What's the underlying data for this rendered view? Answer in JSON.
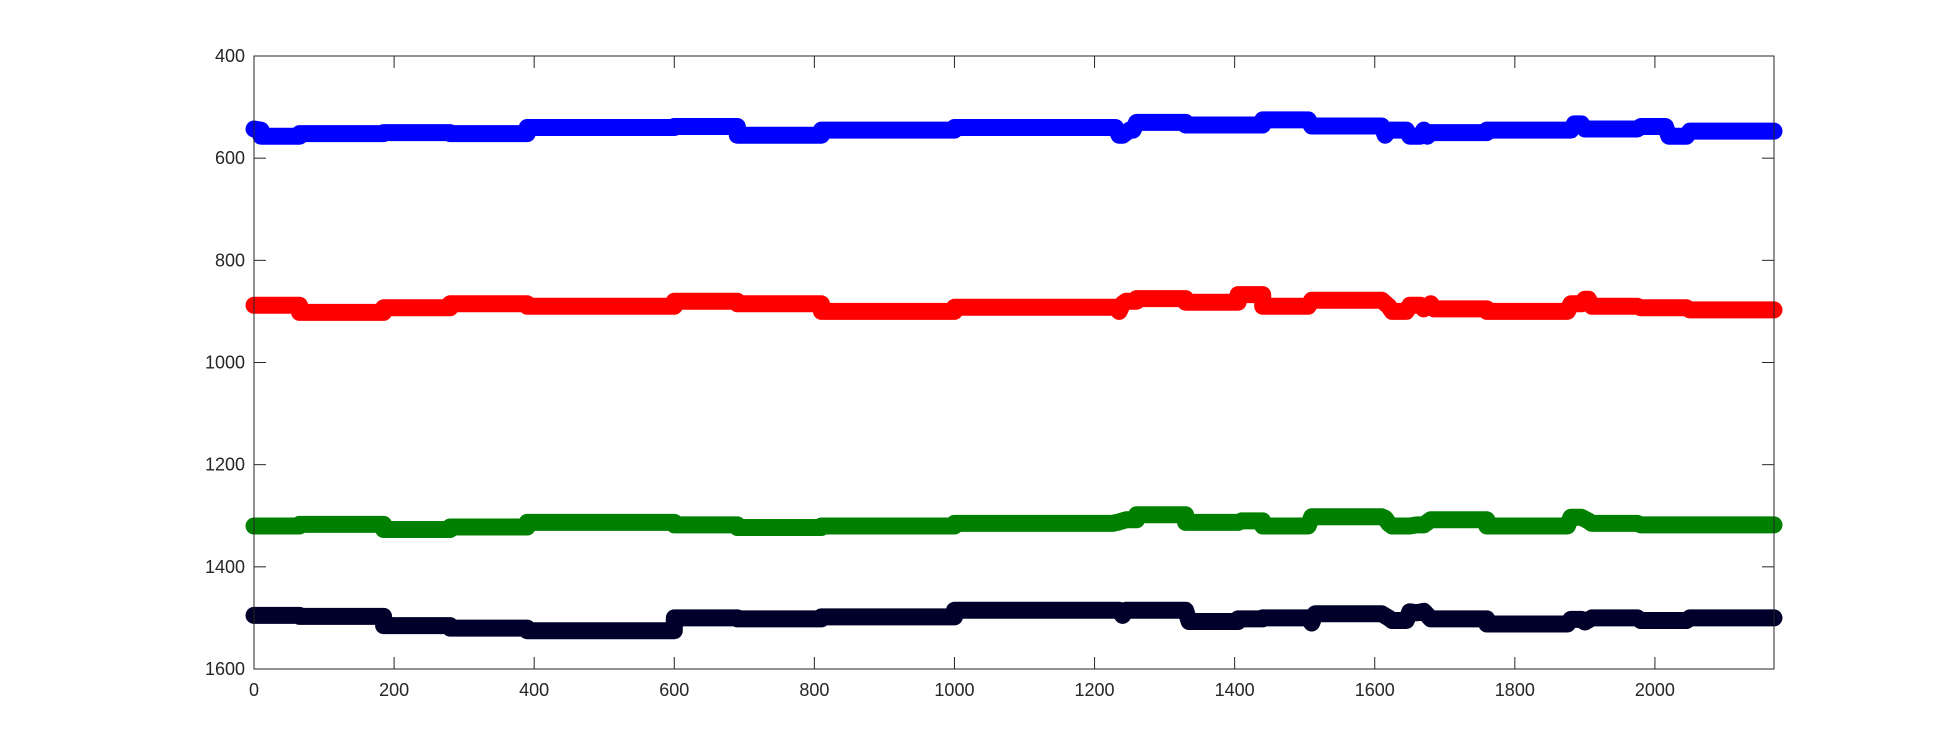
{
  "chart_data": {
    "type": "line",
    "title": "",
    "xlabel": "",
    "ylabel": "",
    "xlim": [
      0,
      2170
    ],
    "ylim": [
      400,
      1600
    ],
    "y_reversed": true,
    "x_ticks": [
      0,
      200,
      400,
      600,
      800,
      1000,
      1200,
      1400,
      1600,
      1800,
      2000
    ],
    "y_ticks": [
      400,
      600,
      800,
      1000,
      1200,
      1400,
      1600
    ],
    "grid": false,
    "legend": "none",
    "series": [
      {
        "color": "#0000ff",
        "x": [
          0,
          10,
          10,
          65,
          65,
          185,
          185,
          280,
          280,
          390,
          390,
          600,
          600,
          690,
          690,
          810,
          810,
          1000,
          1000,
          1230,
          1235,
          1240,
          1250,
          1255,
          1260,
          1330,
          1330,
          1440,
          1440,
          1505,
          1510,
          1610,
          1615,
          1620,
          1625,
          1645,
          1650,
          1665,
          1670,
          1675,
          1680,
          1760,
          1760,
          1880,
          1885,
          1895,
          1900,
          1975,
          1980,
          2015,
          2020,
          2045,
          2050,
          2170
        ],
        "y": [
          543,
          545,
          557,
          557,
          552,
          552,
          550,
          550,
          552,
          552,
          540,
          540,
          538,
          538,
          555,
          555,
          545,
          545,
          540,
          540,
          555,
          555,
          545,
          545,
          530,
          530,
          535,
          535,
          525,
          525,
          537,
          537,
          555,
          545,
          545,
          545,
          557,
          557,
          545,
          557,
          550,
          550,
          545,
          545,
          533,
          533,
          543,
          543,
          538,
          538,
          557,
          557,
          547,
          547
        ]
      },
      {
        "color": "#ff0000",
        "x": [
          0,
          65,
          65,
          185,
          185,
          280,
          280,
          390,
          390,
          600,
          600,
          690,
          690,
          810,
          810,
          1000,
          1000,
          1230,
          1235,
          1240,
          1245,
          1260,
          1260,
          1330,
          1330,
          1405,
          1405,
          1440,
          1440,
          1505,
          1510,
          1610,
          1620,
          1625,
          1645,
          1650,
          1665,
          1670,
          1680,
          1685,
          1760,
          1760,
          1875,
          1880,
          1895,
          1900,
          1905,
          1910,
          1975,
          1980,
          2045,
          2050,
          2170
        ],
        "y": [
          888,
          888,
          902,
          902,
          893,
          893,
          885,
          885,
          890,
          890,
          880,
          880,
          885,
          885,
          900,
          900,
          892,
          892,
          900,
          885,
          880,
          880,
          875,
          875,
          882,
          882,
          867,
          867,
          890,
          890,
          878,
          878,
          890,
          900,
          900,
          888,
          888,
          895,
          885,
          895,
          895,
          900,
          900,
          885,
          885,
          876,
          876,
          890,
          890,
          893,
          893,
          897,
          897
        ]
      },
      {
        "color": "#008000",
        "x": [
          0,
          65,
          65,
          185,
          185,
          280,
          280,
          390,
          390,
          600,
          600,
          690,
          690,
          810,
          810,
          1000,
          1000,
          1225,
          1235,
          1245,
          1260,
          1260,
          1330,
          1330,
          1405,
          1410,
          1440,
          1440,
          1505,
          1510,
          1610,
          1615,
          1620,
          1625,
          1650,
          1660,
          1670,
          1680,
          1760,
          1760,
          1875,
          1880,
          1895,
          1905,
          1910,
          1975,
          1980,
          2045,
          2050,
          2170
        ],
        "y": [
          1320,
          1320,
          1317,
          1317,
          1327,
          1327,
          1322,
          1322,
          1313,
          1313,
          1318,
          1318,
          1323,
          1323,
          1320,
          1320,
          1315,
          1315,
          1312,
          1308,
          1308,
          1298,
          1298,
          1313,
          1313,
          1310,
          1310,
          1320,
          1320,
          1302,
          1302,
          1305,
          1315,
          1320,
          1320,
          1318,
          1318,
          1308,
          1308,
          1320,
          1320,
          1303,
          1303,
          1310,
          1315,
          1315,
          1318,
          1318,
          1318,
          1318
        ]
      },
      {
        "color": "#00002a",
        "x": [
          0,
          65,
          65,
          185,
          185,
          280,
          280,
          390,
          390,
          600,
          600,
          690,
          690,
          810,
          810,
          1000,
          1000,
          1235,
          1240,
          1245,
          1250,
          1260,
          1260,
          1330,
          1335,
          1405,
          1405,
          1440,
          1440,
          1505,
          1510,
          1515,
          1520,
          1610,
          1620,
          1625,
          1645,
          1650,
          1660,
          1670,
          1680,
          1760,
          1760,
          1875,
          1880,
          1895,
          1900,
          1910,
          1975,
          1980,
          2045,
          2050,
          2170
        ],
        "y": [
          1495,
          1495,
          1497,
          1497,
          1515,
          1515,
          1520,
          1520,
          1525,
          1525,
          1500,
          1500,
          1502,
          1502,
          1498,
          1498,
          1485,
          1485,
          1495,
          1485,
          1485,
          1485,
          1485,
          1485,
          1507,
          1507,
          1502,
          1502,
          1500,
          1500,
          1510,
          1492,
          1492,
          1492,
          1500,
          1505,
          1505,
          1488,
          1490,
          1487,
          1502,
          1502,
          1512,
          1512,
          1503,
          1503,
          1508,
          1500,
          1500,
          1505,
          1505,
          1500,
          1500
        ]
      }
    ]
  }
}
